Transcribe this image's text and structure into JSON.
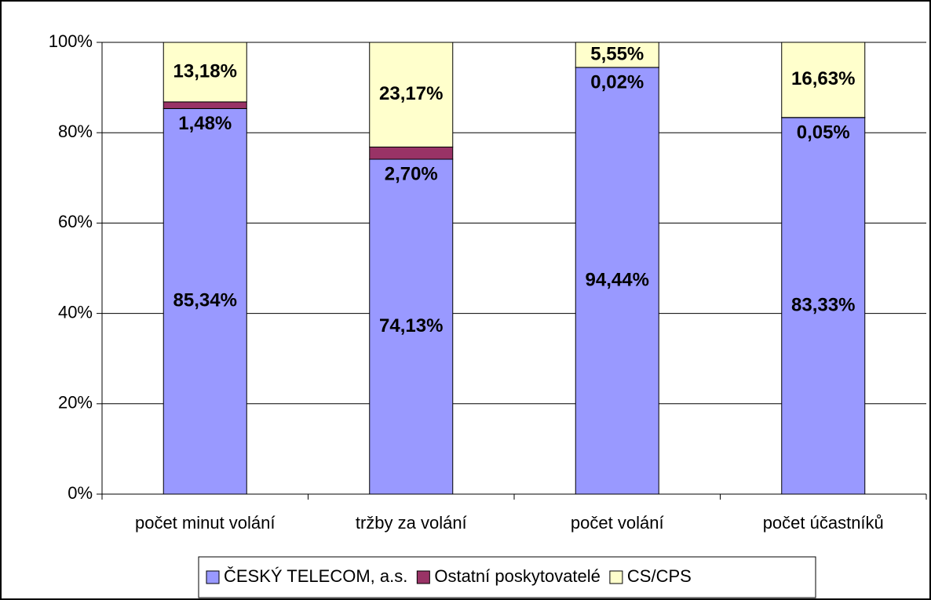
{
  "chart_data": {
    "type": "stacked_bar",
    "categories": [
      "počet minut volání",
      "tržby za volání",
      "počet volání",
      "počet účastníků"
    ],
    "series": [
      {
        "name": "ČESKÝ TELECOM, a.s.",
        "color": "#9999ff",
        "values": [
          85.34,
          74.13,
          94.44,
          83.33
        ],
        "value_labels": [
          "85,34%",
          "74,13%",
          "94,44%",
          "83,33%"
        ]
      },
      {
        "name": "Ostatní poskytovatelé",
        "color": "#993366",
        "values": [
          1.48,
          2.7,
          0.02,
          0.05
        ],
        "value_labels": [
          "1,48%",
          "2,70%",
          "0,02%",
          "0,05%"
        ]
      },
      {
        "name": "CS/CPS",
        "color": "#ffffcc",
        "values": [
          13.18,
          23.17,
          5.55,
          16.63
        ],
        "value_labels": [
          "13,18%",
          "23,17%",
          "5,55%",
          "16,63%"
        ]
      }
    ],
    "ylim": [
      0,
      100
    ],
    "yticks": [
      {
        "value": 0,
        "label": "0%"
      },
      {
        "value": 20,
        "label": "20%"
      },
      {
        "value": 40,
        "label": "40%"
      },
      {
        "value": 60,
        "label": "60%"
      },
      {
        "value": 80,
        "label": "80%"
      },
      {
        "value": 100,
        "label": "100%"
      }
    ],
    "grid": true,
    "legend": "bottom"
  }
}
